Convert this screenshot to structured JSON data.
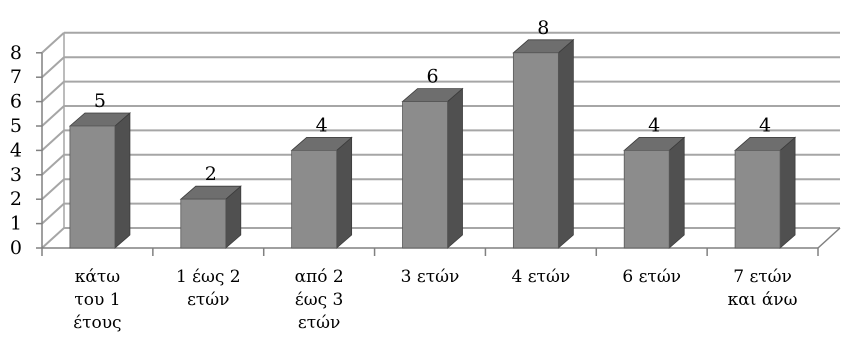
{
  "chart_data": {
    "type": "bar",
    "style": "3d-column",
    "categories": [
      [
        "κάτω",
        "του 1",
        "έτους"
      ],
      [
        "1 έως 2",
        "ετών"
      ],
      [
        "από 2",
        "έως 3",
        "ετών"
      ],
      [
        "3 ετών"
      ],
      [
        "4 ετών"
      ],
      [
        "6 ετών"
      ],
      [
        "7 ετών",
        "και άνω"
      ]
    ],
    "values": [
      5,
      2,
      4,
      6,
      8,
      4,
      4
    ],
    "ylim": [
      0,
      8
    ],
    "yticks": [
      "0",
      "1",
      "2",
      "3",
      "4",
      "5",
      "6",
      "7",
      "8"
    ],
    "grid": true,
    "legend": "none",
    "colors": {
      "bar_front": "#8c8c8c",
      "bar_top": "#6e6e6e",
      "bar_side": "#505050",
      "grid": "#a6a6a6",
      "axis": "#808080"
    }
  }
}
